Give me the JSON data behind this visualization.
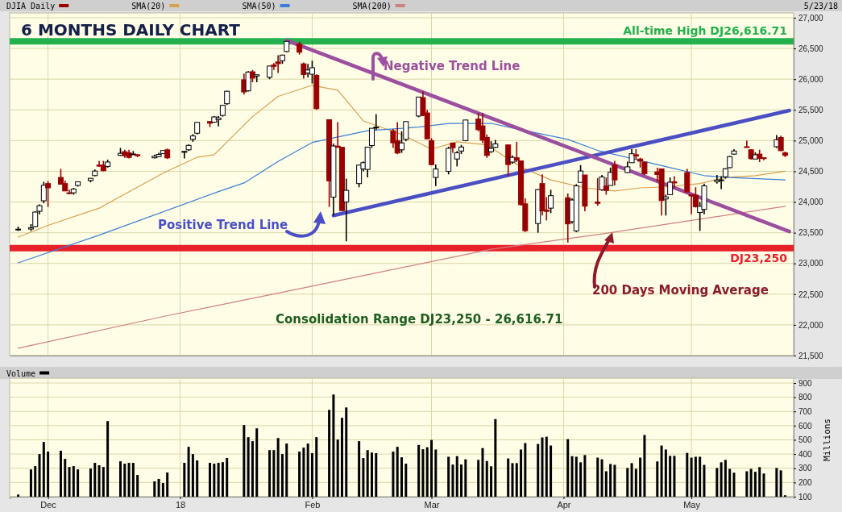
{
  "chart_data": [
    {
      "type": "candlestick",
      "title": "6 MONTHS DAILY CHART",
      "annotations": [
        "5/23/18",
        "Positive Trend Line",
        "Negative Trend Line",
        "200 Days Moving Average",
        "Consolidation Range DJ23,250 - 26,616.71"
      ],
      "xlim": [
        "2017-11-22",
        "2018-05-25"
      ],
      "xticks": [
        {
          "value": "2017-12-01",
          "label": null
        },
        {
          "value": "2018-01-01",
          "label": null
        },
        {
          "value": "2018-02-01",
          "label": null
        },
        {
          "value": "2018-03-01",
          "label": null
        },
        {
          "value": "2018-04-01",
          "label": null
        },
        {
          "value": "2018-05-01",
          "label": null
        }
      ],
      "ylim": [
        21500,
        27000
      ],
      "yticks": [
        {
          "value": 21500,
          "label": "21,500"
        },
        {
          "value": 22000,
          "label": "22,000"
        },
        {
          "value": 22500,
          "label": "22,500"
        },
        {
          "value": 23000,
          "label": "23,000"
        },
        {
          "value": 23500,
          "label": "23,500"
        },
        {
          "value": 24000,
          "label": "24,000"
        },
        {
          "value": 24500,
          "label": "24,500"
        },
        {
          "value": 25000,
          "label": "25,000"
        },
        {
          "value": 25500,
          "label": "25,500"
        },
        {
          "value": 26000,
          "label": "26,000"
        },
        {
          "value": 26500,
          "label": "26,500"
        },
        {
          "value": 27000,
          "label": "27,000"
        }
      ],
      "tick_labels": "y",
      "grid": true,
      "legend": "top left",
      "ref_lines": [
        {
          "axis": "y",
          "value": 26616.71,
          "label": "All-time High DJ26,616.71",
          "color": "#22b14c"
        },
        {
          "axis": "y",
          "value": 23250,
          "label": "DJ23,250",
          "color": "#e8202a"
        }
      ],
      "series": [
        {
          "name": "DJIA Daily",
          "color": "#990000",
          "colors": [
            "#ffffff",
            "#ffffff",
            "#ffffff",
            "#ffffff",
            "#ffffff",
            "#990000",
            "#990000",
            "#990000",
            "#990000",
            "#ffffff",
            "#ffffff",
            "#ffffff",
            "#ffffff",
            "#990000",
            "#990000",
            "#ffffff",
            "#ffffff",
            "#990000",
            "#990000",
            "#ffffff",
            "#990000",
            "#ffffff",
            "#ffffff",
            "#ffffff",
            "#990000",
            "#ffffff",
            "#ffffff",
            "#ffffff",
            "#ffffff",
            "#990000",
            "#ffffff",
            "#ffffff",
            "#ffffff",
            "#ffffff",
            "#990000",
            "#ffffff",
            "#990000",
            "#ffffff",
            "#ffffff",
            "#990000",
            "#990000",
            "#ffffff",
            "#ffffff",
            "#990000",
            "#990000",
            "#ffffff",
            "#ffffff",
            "#990000",
            "#990000",
            "#ffffff",
            "#990000",
            "#990000",
            "#ffffff",
            "#ffffff",
            "#ffffff",
            "#ffffff",
            "#ffffff",
            "#ffffff",
            "#990000",
            "#990000",
            "#ffffff",
            "#ffffff",
            "#ffffff",
            "#990000",
            "#990000",
            "#990000",
            "#ffffff",
            "#ffffff",
            "#990000",
            "#ffffff",
            "#ffffff",
            "#ffffff",
            "#990000",
            "#990000",
            "#990000",
            "#ffffff",
            "#ffffff",
            "#990000",
            "#ffffff",
            "#990000",
            "#990000",
            "#990000",
            "#ffffff",
            "#990000",
            "#990000",
            "#ffffff",
            "#990000",
            "#ffffff",
            "#ffffff",
            "#ffffff",
            "#990000",
            "#990000",
            "#ffffff",
            "#990000",
            "#ffffff",
            "#990000",
            "#ffffff",
            "#ffffff",
            "#990000",
            "#990000",
            "#990000",
            "#990000",
            "#990000",
            "#ffffff",
            "#ffffff",
            "#990000",
            "#990000",
            "#990000",
            "#990000",
            "#ffffff",
            "#ffffff",
            "#ffffff",
            "#ffffff",
            "#ffffff",
            "#ffffff",
            "#ffffff",
            "#990000",
            "#990000",
            "#ffffff",
            "#990000",
            "#990000",
            "#ffffff",
            "#990000",
            "#990000"
          ],
          "x": [
            "2017-11-24",
            "2017-11-27",
            "2017-11-28",
            "2017-11-29",
            "2017-11-30",
            "2017-12-01",
            "2017-12-04",
            "2017-12-05",
            "2017-12-06",
            "2017-12-07",
            "2017-12-08",
            "2017-12-11",
            "2017-12-12",
            "2017-12-13",
            "2017-12-14",
            "2017-12-15",
            "2017-12-18",
            "2017-12-19",
            "2017-12-20",
            "2017-12-21",
            "2017-12-22",
            "2017-12-26",
            "2017-12-27",
            "2017-12-28",
            "2017-12-29",
            "2018-01-02",
            "2018-01-03",
            "2018-01-04",
            "2018-01-05",
            "2018-01-08",
            "2018-01-09",
            "2018-01-10",
            "2018-01-11",
            "2018-01-12",
            "2018-01-16",
            "2018-01-17",
            "2018-01-18",
            "2018-01-19",
            "2018-01-22",
            "2018-01-23",
            "2018-01-24",
            "2018-01-25",
            "2018-01-26",
            "2018-01-29",
            "2018-01-30",
            "2018-01-31",
            "2018-02-01",
            "2018-02-02",
            "2018-02-05",
            "2018-02-06",
            "2018-02-07",
            "2018-02-08",
            "2018-02-09",
            "2018-02-12",
            "2018-02-13",
            "2018-02-14",
            "2018-02-15",
            "2018-02-16",
            "2018-02-20",
            "2018-02-21",
            "2018-02-22",
            "2018-02-23",
            "2018-02-26",
            "2018-02-27",
            "2018-02-28",
            "2018-03-01",
            "2018-03-02",
            "2018-03-05",
            "2018-03-06",
            "2018-03-07",
            "2018-03-08",
            "2018-03-09",
            "2018-03-12",
            "2018-03-13",
            "2018-03-14",
            "2018-03-15",
            "2018-03-16",
            "2018-03-19",
            "2018-03-20",
            "2018-03-21",
            "2018-03-22",
            "2018-03-23",
            "2018-03-26",
            "2018-03-27",
            "2018-03-28",
            "2018-03-29",
            "2018-04-02",
            "2018-04-03",
            "2018-04-04",
            "2018-04-05",
            "2018-04-06",
            "2018-04-09",
            "2018-04-10",
            "2018-04-11",
            "2018-04-12",
            "2018-04-13",
            "2018-04-16",
            "2018-04-17",
            "2018-04-18",
            "2018-04-19",
            "2018-04-20",
            "2018-04-23",
            "2018-04-24",
            "2018-04-25",
            "2018-04-26",
            "2018-04-27",
            "2018-04-30",
            "2018-05-01",
            "2018-05-02",
            "2018-05-03",
            "2018-05-04",
            "2018-05-07",
            "2018-05-08",
            "2018-05-09",
            "2018-05-10",
            "2018-05-11",
            "2018-05-14",
            "2018-05-15",
            "2018-05-16",
            "2018-05-17",
            "2018-05-18",
            "2018-05-21",
            "2018-05-22",
            "2018-05-23"
          ],
          "ohlc": [
            [
              23550,
              23600,
              23530,
              23558
            ],
            [
              23560,
              23640,
              23530,
              23580
            ],
            [
              23600,
              23850,
              23590,
              23836
            ],
            [
              23850,
              23960,
              23800,
              23940
            ],
            [
              24020,
              24330,
              23980,
              24272
            ],
            [
              24300,
              24340,
              23920,
              24231
            ],
            [
              24400,
              24540,
              24290,
              24290
            ],
            [
              24300,
              24350,
              24180,
              24180
            ],
            [
              24150,
              24200,
              24130,
              24140
            ],
            [
              24150,
              24230,
              24120,
              24211
            ],
            [
              24270,
              24330,
              24250,
              24329
            ],
            [
              24350,
              24390,
              24320,
              24386
            ],
            [
              24430,
              24530,
              24420,
              24504
            ],
            [
              24600,
              24670,
              24570,
              24585
            ],
            [
              24600,
              24670,
              24500,
              24509
            ],
            [
              24580,
              24690,
              24560,
              24651
            ],
            [
              24760,
              24880,
              24750,
              24792
            ],
            [
              24820,
              24850,
              24720,
              24754
            ],
            [
              24800,
              24850,
              24710,
              24726
            ],
            [
              24780,
              24830,
              24770,
              24782
            ],
            [
              24770,
              24780,
              24730,
              24754
            ],
            [
              24720,
              24770,
              24710,
              24746
            ],
            [
              24740,
              24800,
              24730,
              24775
            ],
            [
              24790,
              24840,
              24780,
              24838
            ],
            [
              24850,
              24870,
              24700,
              24719
            ],
            [
              24810,
              24830,
              24710,
              24824
            ],
            [
              24850,
              24940,
              24830,
              24922
            ],
            [
              25020,
              25105,
              24980,
              25075
            ],
            [
              25120,
              25300,
              25100,
              25296
            ],
            [
              25310,
              25310,
              25220,
              25283
            ],
            [
              25300,
              25400,
              25290,
              25385
            ],
            [
              25340,
              25400,
              25230,
              25369
            ],
            [
              25410,
              25580,
              25390,
              25574
            ],
            [
              25600,
              25810,
              25580,
              25803
            ],
            [
              25990,
              26090,
              25750,
              25792
            ],
            [
              25810,
              26130,
              25800,
              26116
            ],
            [
              26120,
              26150,
              25950,
              26017
            ],
            [
              26050,
              26075,
              25950,
              26071
            ],
            [
              26030,
              26215,
              26000,
              26214
            ],
            [
              26230,
              26260,
              26150,
              26210
            ],
            [
              26280,
              26390,
              26100,
              26252
            ],
            [
              26300,
              26400,
              26250,
              26392
            ],
            [
              26450,
              26617,
              26440,
              26616
            ],
            [
              26570,
              26610,
              26400,
              26439
            ],
            [
              26250,
              26270,
              26010,
              26076
            ],
            [
              26100,
              26250,
              26030,
              26149
            ],
            [
              26080,
              26300,
              25930,
              26186
            ],
            [
              26060,
              26080,
              25500,
              25520
            ],
            [
              25340,
              25340,
              23920,
              24345
            ],
            [
              24080,
              24950,
              23780,
              24912
            ],
            [
              24910,
              25300,
              24880,
              24893
            ],
            [
              24890,
              24900,
              23860,
              23860
            ],
            [
              24000,
              24380,
              23360,
              24190
            ],
            [
              24300,
              24610,
              24240,
              24601
            ],
            [
              24540,
              24660,
              24500,
              24640
            ],
            [
              24530,
              24900,
              24400,
              24893
            ],
            [
              24920,
              25200,
              24880,
              25200
            ],
            [
              25210,
              25430,
              25170,
              25219
            ],
            [
              25160,
              25190,
              24880,
              24964
            ],
            [
              25000,
              25300,
              24780,
              24797
            ],
            [
              24850,
              25150,
              24800,
              24962
            ],
            [
              25020,
              25310,
              24990,
              25309
            ],
            [
              25400,
              25710,
              25380,
              25709
            ],
            [
              25700,
              25800,
              25400,
              25410
            ],
            [
              25450,
              25500,
              25020,
              25029
            ],
            [
              25000,
              25040,
              24600,
              24608
            ],
            [
              24400,
              24610,
              24260,
              24538
            ],
            [
              24500,
              24900,
              24450,
              24874
            ],
            [
              24960,
              24970,
              24800,
              24884
            ],
            [
              24700,
              24830,
              24580,
              24801
            ],
            [
              24830,
              24930,
              24780,
              24895
            ],
            [
              25000,
              25340,
              24990,
              25335
            ],
            [
              25350,
              25450,
              25150,
              25178
            ],
            [
              25240,
              25450,
              24960,
              25007
            ],
            [
              25050,
              25100,
              24720,
              24758
            ],
            [
              24820,
              24990,
              24800,
              24873
            ],
            [
              24890,
              25010,
              24880,
              24946
            ],
            [
              24930,
              24930,
              24420,
              24610
            ],
            [
              24650,
              24760,
              24620,
              24727
            ],
            [
              24720,
              24980,
              24650,
              24682
            ],
            [
              24670,
              24670,
              23940,
              23957
            ],
            [
              23970,
              24060,
              23510,
              23533
            ],
            [
              23650,
              24210,
              23500,
              24202
            ],
            [
              24300,
              24450,
              23780,
              23857
            ],
            [
              23870,
              24080,
              23700,
              23848
            ],
            [
              23900,
              24200,
              23820,
              24103
            ],
            [
              24070,
              24140,
              23340,
              23644
            ],
            [
              23680,
              24060,
              23650,
              24033
            ],
            [
              23530,
              24290,
              23510,
              24264
            ],
            [
              24320,
              24600,
              24320,
              24505
            ],
            [
              24440,
              24440,
              23850,
              23933
            ],
            [
              24000,
              24390,
              23940,
              23979
            ],
            [
              24200,
              24440,
              24180,
              24408
            ],
            [
              24260,
              24400,
              24120,
              24189
            ],
            [
              24270,
              24560,
              24270,
              24483
            ],
            [
              24600,
              24670,
              24270,
              24360
            ],
            [
              24480,
              24660,
              24470,
              24573
            ],
            [
              24640,
              24860,
              24640,
              24786
            ],
            [
              24770,
              24860,
              24690,
              24748
            ],
            [
              24700,
              24720,
              24560,
              24665
            ],
            [
              24650,
              24650,
              24440,
              24462
            ],
            [
              24490,
              24560,
              24330,
              24448
            ],
            [
              24540,
              24540,
              23780,
              24024
            ],
            [
              24050,
              24120,
              23780,
              24083
            ],
            [
              24120,
              24400,
              24120,
              24322
            ],
            [
              24330,
              24420,
              24220,
              24311
            ],
            [
              24480,
              24540,
              24160,
              24163
            ],
            [
              24120,
              24120,
              23800,
              24099
            ],
            [
              24110,
              24240,
              23910,
              23925
            ],
            [
              23830,
              24000,
              23530,
              23930
            ],
            [
              23880,
              24300,
              23800,
              24263
            ],
            [
              24330,
              24440,
              24300,
              24357
            ],
            [
              24360,
              24420,
              24210,
              24360
            ],
            [
              24410,
              24550,
              24380,
              24542
            ],
            [
              24560,
              24750,
              24550,
              24739
            ],
            [
              24780,
              24860,
              24770,
              24831
            ],
            [
              24900,
              25000,
              24890,
              24899
            ],
            [
              24850,
              24860,
              24690,
              24706
            ],
            [
              24700,
              24810,
              24700,
              24769
            ],
            [
              24780,
              24850,
              24650,
              24713
            ],
            [
              24720,
              24730,
              24680,
              24715
            ],
            [
              24900,
              25090,
              24880,
              25013
            ],
            [
              25050,
              25080,
              24830,
              24835
            ],
            [
              24800,
              24820,
              24730,
              24760
            ]
          ]
        },
        {
          "name": "SMA(20)",
          "type": "line",
          "color": "#d9a050",
          "x": [
            "2017-11-24",
            "2017-12-01",
            "2017-12-13",
            "2017-12-28",
            "2018-01-05",
            "2018-01-09",
            "2018-01-18",
            "2018-01-24",
            "2018-02-01",
            "2018-02-07",
            "2018-02-13",
            "2018-02-22",
            "2018-03-01",
            "2018-03-07",
            "2018-03-14",
            "2018-03-22",
            "2018-03-29",
            "2018-04-06",
            "2018-04-13",
            "2018-04-19",
            "2018-04-26",
            "2018-05-03",
            "2018-05-09",
            "2018-05-16",
            "2018-05-23"
          ],
          "values": [
            23430,
            23620,
            23900,
            24470,
            24730,
            24770,
            25390,
            25720,
            25900,
            25820,
            25320,
            25100,
            24860,
            24980,
            24930,
            24570,
            24360,
            24230,
            24180,
            24230,
            24250,
            24300,
            24400,
            24430,
            24500
          ]
        },
        {
          "name": "SMA(50)",
          "type": "line",
          "color": "#3a7fd5",
          "x": [
            "2017-11-24",
            "2017-12-13",
            "2018-01-10",
            "2018-01-16",
            "2018-01-24",
            "2018-02-01",
            "2018-02-14",
            "2018-02-26",
            "2018-03-05",
            "2018-03-15",
            "2018-03-21",
            "2018-04-02",
            "2018-04-09",
            "2018-04-26",
            "2018-05-04",
            "2018-05-10",
            "2018-05-23"
          ],
          "values": [
            23010,
            23460,
            24170,
            24310,
            24660,
            24970,
            25160,
            25220,
            25280,
            25280,
            25190,
            25020,
            24840,
            24560,
            24430,
            24400,
            24360
          ]
        },
        {
          "name": "SMA(200)",
          "type": "line",
          "color": "#d08080",
          "x": [
            "2017-11-24",
            "2017-12-29",
            "2018-02-01",
            "2018-03-15",
            "2018-04-10",
            "2018-05-23"
          ],
          "values": [
            21620,
            22150,
            22630,
            23230,
            23480,
            23930
          ]
        },
        {
          "type": "line",
          "color": "#4a4fc4",
          "x": [
            "2018-02-06",
            "2018-05-24"
          ],
          "values": [
            23780,
            25490
          ]
        },
        {
          "type": "line",
          "color": "#9b4f9e",
          "x": [
            "2018-01-26",
            "2018-05-24"
          ],
          "values": [
            26630,
            23520
          ]
        }
      ]
    },
    {
      "type": "bar",
      "ylabel": "Millions",
      "legend": "top left",
      "grid": true,
      "xlim": [
        "2017-11-22",
        "2018-05-25"
      ],
      "xticks": [
        {
          "value": "2017-12-01",
          "label": "Dec"
        },
        {
          "value": "2018-01-01",
          "label": "18"
        },
        {
          "value": "2018-02-01",
          "label": "Feb"
        },
        {
          "value": "2018-03-01",
          "label": "Mar"
        },
        {
          "value": "2018-04-01",
          "label": "Apr"
        },
        {
          "value": "2018-05-01",
          "label": "May"
        }
      ],
      "ylim": [
        100,
        900
      ],
      "yticks": [
        100,
        200,
        300,
        400,
        500,
        600,
        700,
        800,
        900
      ],
      "x": [
        "2017-11-24",
        "2017-11-27",
        "2017-11-28",
        "2017-11-29",
        "2017-11-30",
        "2017-12-01",
        "2017-12-04",
        "2017-12-05",
        "2017-12-06",
        "2017-12-07",
        "2017-12-08",
        "2017-12-11",
        "2017-12-12",
        "2017-12-13",
        "2017-12-14",
        "2017-12-15",
        "2017-12-18",
        "2017-12-19",
        "2017-12-20",
        "2017-12-21",
        "2017-12-22",
        "2017-12-26",
        "2017-12-27",
        "2017-12-28",
        "2017-12-29",
        "2018-01-02",
        "2018-01-03",
        "2018-01-04",
        "2018-01-05",
        "2018-01-08",
        "2018-01-09",
        "2018-01-10",
        "2018-01-11",
        "2018-01-12",
        "2018-01-16",
        "2018-01-17",
        "2018-01-18",
        "2018-01-19",
        "2018-01-22",
        "2018-01-23",
        "2018-01-24",
        "2018-01-25",
        "2018-01-26",
        "2018-01-29",
        "2018-01-30",
        "2018-01-31",
        "2018-02-01",
        "2018-02-02",
        "2018-02-05",
        "2018-02-06",
        "2018-02-07",
        "2018-02-08",
        "2018-02-09",
        "2018-02-12",
        "2018-02-13",
        "2018-02-14",
        "2018-02-15",
        "2018-02-16",
        "2018-02-20",
        "2018-02-21",
        "2018-02-22",
        "2018-02-23",
        "2018-02-26",
        "2018-02-27",
        "2018-02-28",
        "2018-03-01",
        "2018-03-02",
        "2018-03-05",
        "2018-03-06",
        "2018-03-07",
        "2018-03-08",
        "2018-03-09",
        "2018-03-12",
        "2018-03-13",
        "2018-03-14",
        "2018-03-15",
        "2018-03-16",
        "2018-03-19",
        "2018-03-20",
        "2018-03-21",
        "2018-03-22",
        "2018-03-23",
        "2018-03-26",
        "2018-03-27",
        "2018-03-28",
        "2018-03-29",
        "2018-04-02",
        "2018-04-03",
        "2018-04-04",
        "2018-04-05",
        "2018-04-06",
        "2018-04-09",
        "2018-04-10",
        "2018-04-11",
        "2018-04-12",
        "2018-04-13",
        "2018-04-16",
        "2018-04-17",
        "2018-04-18",
        "2018-04-19",
        "2018-04-20",
        "2018-04-23",
        "2018-04-24",
        "2018-04-25",
        "2018-04-26",
        "2018-04-27",
        "2018-04-30",
        "2018-05-01",
        "2018-05-02",
        "2018-05-03",
        "2018-05-04",
        "2018-05-07",
        "2018-05-08",
        "2018-05-09",
        "2018-05-10",
        "2018-05-11",
        "2018-05-14",
        "2018-05-15",
        "2018-05-16",
        "2018-05-17",
        "2018-05-18",
        "2018-05-21",
        "2018-05-22",
        "2018-05-23"
      ],
      "series": [
        {
          "name": "Volume",
          "color": "#000000",
          "values": [
            115,
            292,
            315,
            400,
            485,
            417,
            423,
            366,
            309,
            315,
            292,
            298,
            338,
            321,
            309,
            632,
            349,
            332,
            338,
            338,
            253,
            208,
            225,
            196,
            270,
            338,
            451,
            400,
            355,
            338,
            332,
            338,
            343,
            372,
            604,
            519,
            491,
            581,
            428,
            428,
            513,
            400,
            474,
            417,
            445,
            474,
            406,
            519,
            711,
            819,
            502,
            655,
            728,
            491,
            372,
            428,
            411,
            406,
            417,
            451,
            377,
            332,
            464,
            434,
            448,
            499,
            432,
            381,
            326,
            385,
            326,
            363,
            359,
            442,
            351,
            314,
            646,
            369,
            336,
            336,
            432,
            477,
            471,
            517,
            522,
            460,
            505,
            385,
            381,
            342,
            393,
            375,
            363,
            279,
            330,
            324,
            302,
            336,
            296,
            375,
            534,
            348,
            460,
            432,
            387,
            387,
            408,
            375,
            381,
            381,
            324,
            302,
            342,
            359,
            296,
            269,
            279,
            296,
            275,
            308,
            263,
            302,
            285,
            110
          ]
        }
      ]
    }
  ]
}
